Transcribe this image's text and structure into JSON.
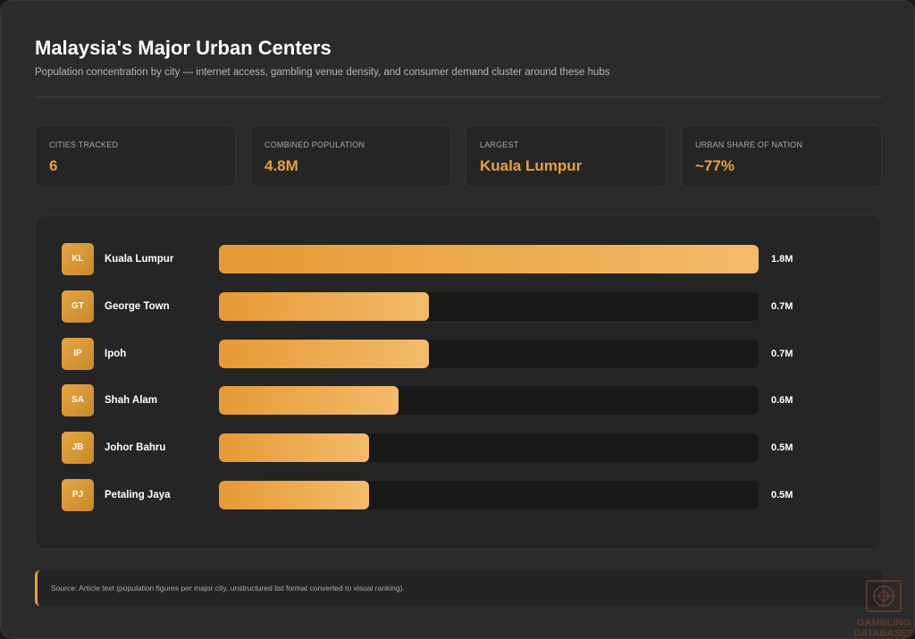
{
  "header": {
    "title": "Malaysia's Major Urban Centers",
    "subtitle": "Population concentration by city — internet access, gambling venue density, and consumer demand cluster around these hubs"
  },
  "stats": [
    {
      "label": "CITIES TRACKED",
      "value": "6"
    },
    {
      "label": "COMBINED POPULATION",
      "value": "4.8M"
    },
    {
      "label": "LARGEST",
      "value": "Kuala Lumpur"
    },
    {
      "label": "URBAN SHARE OF NATION",
      "value": "~77%"
    }
  ],
  "chart_data": {
    "type": "bar",
    "orientation": "horizontal",
    "max": 1.8,
    "unit": "M",
    "grid": false,
    "bar_colors": [
      "#e59a34",
      "#f4bb6a"
    ],
    "categories": [
      "Kuala Lumpur",
      "George Town",
      "Ipoh",
      "Shah Alam",
      "Johor Bahru",
      "Petaling Jaya"
    ],
    "badges": [
      "KL",
      "GT",
      "IP",
      "SA",
      "JB",
      "PJ"
    ],
    "values": [
      1.8,
      0.7,
      0.7,
      0.6,
      0.5,
      0.5
    ],
    "value_labels": [
      "1.8M",
      "0.7M",
      "0.7M",
      "0.6M",
      "0.5M",
      "0.5M"
    ]
  },
  "source": {
    "text": "Source: Article text (population figures per major city, unstructured list format converted to visual ranking)."
  },
  "watermark": {
    "icon": "gambling-databases-logo",
    "text": "GAMBLING DATABASES"
  },
  "colors": {
    "accent": "#e8a13e",
    "background": "#2b2b2b",
    "panel": "#252525",
    "track": "#181818"
  }
}
